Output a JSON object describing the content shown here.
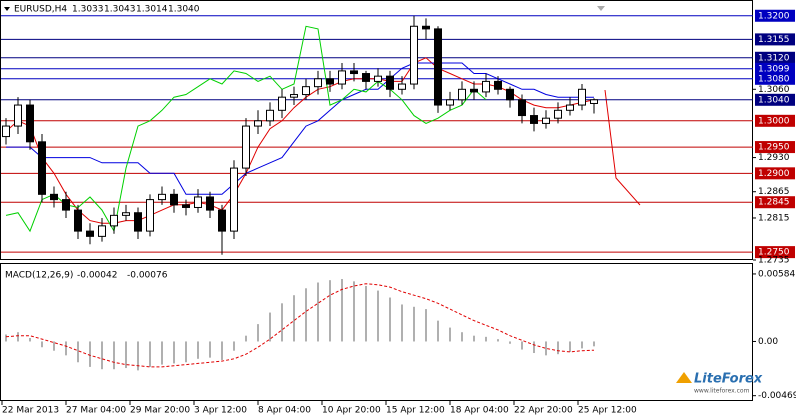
{
  "chart_data": [
    {
      "type": "candlestick",
      "header": {
        "symbol": "EURUSD,H4",
        "values": [
          1.3033,
          1.3043,
          1.3014,
          1.304
        ],
        "value_labels": [
          "1.3033",
          "1.3043",
          "1.3014",
          "1.3040"
        ]
      },
      "open": [
        1.297,
        1.299,
        1.303,
        1.296,
        1.286,
        1.285,
        1.283,
        1.279,
        1.278,
        1.28,
        1.282,
        1.2825,
        1.279,
        1.285,
        1.286,
        1.284,
        1.2835,
        1.2855,
        1.283,
        1.279,
        1.291,
        1.299,
        1.3,
        1.302,
        1.3045,
        1.305,
        1.3065,
        1.308,
        1.307,
        1.3095,
        1.309,
        1.3075,
        1.3085,
        1.306,
        1.307,
        1.318,
        1.3175,
        1.303,
        1.304,
        1.306,
        1.3055,
        1.3075,
        1.306,
        1.304,
        1.301,
        1.2995,
        1.3005,
        1.302,
        1.303,
        1.3033
      ],
      "high": [
        1.3005,
        1.3045,
        1.304,
        1.2975,
        1.2875,
        1.2865,
        1.284,
        1.2805,
        1.2815,
        1.2835,
        1.284,
        1.2835,
        1.286,
        1.2875,
        1.287,
        1.285,
        1.287,
        1.2865,
        1.284,
        1.2925,
        1.3005,
        1.302,
        1.3035,
        1.306,
        1.3065,
        1.308,
        1.3095,
        1.3095,
        1.311,
        1.311,
        1.3095,
        1.31,
        1.3095,
        1.3085,
        1.32,
        1.3195,
        1.318,
        1.3055,
        1.3075,
        1.3075,
        1.309,
        1.3085,
        1.3065,
        1.305,
        1.3025,
        1.302,
        1.3035,
        1.3045,
        1.307,
        1.3043
      ],
      "low": [
        1.2955,
        1.2975,
        1.2945,
        1.2845,
        1.2835,
        1.2815,
        1.2775,
        1.2765,
        1.277,
        1.2785,
        1.281,
        1.2775,
        1.278,
        1.284,
        1.2825,
        1.282,
        1.2825,
        1.2815,
        1.2745,
        1.2775,
        1.2895,
        1.2975,
        1.299,
        1.3005,
        1.303,
        1.304,
        1.305,
        1.3055,
        1.306,
        1.3075,
        1.306,
        1.3065,
        1.3045,
        1.305,
        1.306,
        1.3155,
        1.3015,
        1.302,
        1.303,
        1.304,
        1.3045,
        1.305,
        1.3025,
        1.2995,
        1.298,
        1.2985,
        1.2995,
        1.301,
        1.302,
        1.3014
      ],
      "close": [
        1.299,
        1.303,
        1.296,
        1.286,
        1.285,
        1.283,
        1.279,
        1.278,
        1.28,
        1.282,
        1.2825,
        1.279,
        1.285,
        1.286,
        1.284,
        1.2835,
        1.2855,
        1.283,
        1.279,
        1.291,
        1.299,
        1.3,
        1.302,
        1.3045,
        1.305,
        1.3065,
        1.308,
        1.307,
        1.3095,
        1.309,
        1.3075,
        1.3085,
        1.306,
        1.307,
        1.318,
        1.3175,
        1.303,
        1.304,
        1.306,
        1.3055,
        1.3075,
        1.306,
        1.304,
        1.301,
        1.2995,
        1.3005,
        1.302,
        1.303,
        1.306,
        1.304
      ],
      "series": [
        {
          "color": "#e00000",
          "values": [
            1.298,
            1.3,
            1.299,
            1.293,
            1.29,
            1.286,
            1.283,
            1.281,
            1.2805,
            1.2805,
            1.281,
            1.281,
            1.282,
            1.283,
            1.284,
            1.284,
            1.2845,
            1.284,
            1.283,
            1.286,
            1.29,
            1.295,
            1.2985,
            1.3,
            1.3025,
            1.3045,
            1.306,
            1.3065,
            1.3075,
            1.308,
            1.308,
            1.308,
            1.3075,
            1.3075,
            1.311,
            1.312,
            1.31,
            1.309,
            1.308,
            1.307,
            1.307,
            1.3065,
            1.3055,
            1.304,
            1.303,
            1.3025,
            1.3025,
            1.303,
            1.3035,
            1.304
          ]
        },
        {
          "color": "#0000e0",
          "values": [
            1.295,
            1.295,
            1.295,
            1.293,
            1.293,
            1.293,
            1.293,
            1.293,
            1.292,
            1.292,
            1.292,
            1.292,
            1.29,
            1.29,
            1.29,
            1.286,
            1.286,
            1.286,
            1.286,
            1.288,
            1.29,
            1.291,
            1.292,
            1.293,
            1.296,
            1.299,
            1.3,
            1.302,
            1.304,
            1.305,
            1.306,
            1.306,
            1.308,
            1.31,
            1.311,
            1.311,
            1.311,
            1.311,
            1.311,
            1.309,
            1.309,
            1.308,
            1.307,
            1.306,
            1.306,
            1.305,
            1.3045,
            1.3045,
            1.3045,
            1.3045
          ]
        },
        {
          "color": "#00d000",
          "values": [
            1.282,
            1.2825,
            1.279,
            1.285,
            1.286,
            1.284,
            1.2835,
            1.2855,
            1.283,
            1.279,
            1.291,
            1.299,
            1.3,
            1.302,
            1.3045,
            1.305,
            1.3065,
            1.308,
            1.307,
            1.3095,
            1.309,
            1.3075,
            1.3085,
            1.306,
            1.307,
            1.318,
            1.3175,
            1.303,
            1.304,
            1.306,
            1.3055,
            1.3075,
            1.306,
            1.304,
            1.301,
            1.2995,
            1.3005,
            1.302,
            1.303,
            1.306,
            1.304,
            null,
            null,
            null,
            null,
            null,
            null,
            null,
            null,
            null
          ]
        }
      ],
      "levels": [
        {
          "value": 1.32,
          "label": "1.3200",
          "color": "#0000c0"
        },
        {
          "value": 1.3155,
          "label": "1.3155",
          "color": "#000080"
        },
        {
          "value": 1.312,
          "label": "1.3120",
          "color": "#000080"
        },
        {
          "value": 1.3099,
          "label": "1.3099",
          "color": "#0000c0"
        },
        {
          "value": 1.308,
          "label": "1.3080",
          "color": "#0000c0"
        },
        {
          "value": 1.304,
          "label": "1.3040",
          "color": "#000080"
        },
        {
          "value": 1.3,
          "label": "1.3000",
          "color": "#c00000"
        },
        {
          "value": 1.295,
          "label": "1.2950",
          "color": "#c00000"
        },
        {
          "value": 1.29,
          "label": "1.2900",
          "color": "#c00000"
        },
        {
          "value": 1.2845,
          "label": "1.2845",
          "color": "#c00000"
        },
        {
          "value": 1.275,
          "label": "1.2750",
          "color": "#c00000"
        }
      ],
      "ylim": [
        1.2735,
        1.323
      ],
      "yticks": [
        {
          "value": 1.306,
          "label": "1.3060"
        },
        {
          "value": 1.293,
          "label": "1.2930"
        },
        {
          "value": 1.2865,
          "label": "1.2865"
        },
        {
          "value": 1.2815,
          "label": "1.2815"
        },
        {
          "value": 1.2735,
          "label": "1.2735"
        }
      ],
      "x_labels": [
        "22 Mar 2013",
        "27 Mar 04:00",
        "29 Mar 20:00",
        "3 Apr 12:00",
        "8 Apr 04:00",
        "10 Apr 20:00",
        "15 Apr 12:00",
        "18 Apr 04:00",
        "22 Apr 20:00",
        "25 Apr 12:00"
      ],
      "logo": {
        "name": "LiteForex",
        "url": "www.liteforex.com"
      }
    },
    {
      "type": "macd",
      "title": "MACD(12,26,9)",
      "header_values": [
        -0.00042,
        -0.00076
      ],
      "values": [
        0.0006,
        0.0008,
        0.0003,
        -0.0005,
        -0.0008,
        -0.0012,
        -0.0018,
        -0.0022,
        -0.0024,
        -0.0024,
        -0.0023,
        -0.0025,
        -0.0022,
        -0.002,
        -0.0019,
        -0.0018,
        -0.0015,
        -0.0014,
        -0.0016,
        -0.0008,
        0.0005,
        0.0015,
        0.0025,
        0.0033,
        0.004,
        0.0046,
        0.0051,
        0.0053,
        0.0054,
        0.0052,
        0.0048,
        0.0044,
        0.0038,
        0.0032,
        0.003,
        0.0028,
        0.0018,
        0.0012,
        0.0008,
        0.0005,
        0.0004,
        0.0002,
        -0.0002,
        -0.0007,
        -0.001,
        -0.0012,
        -0.0011,
        -0.0009,
        -0.0006,
        -0.00042
      ],
      "color": "#b0b0b0",
      "signal": {
        "color": "#e00000",
        "values": [
          0.0004,
          0.0005,
          0.0005,
          0.0002,
          -0.0001,
          -0.0004,
          -0.0008,
          -0.0012,
          -0.0015,
          -0.0018,
          -0.002,
          -0.0021,
          -0.0022,
          -0.0022,
          -0.0021,
          -0.002,
          -0.0019,
          -0.0018,
          -0.0017,
          -0.0015,
          -0.0011,
          -0.0005,
          0.0002,
          0.001,
          0.0018,
          0.0026,
          0.0033,
          0.004,
          0.0045,
          0.0048,
          0.005,
          0.0049,
          0.0047,
          0.0043,
          0.004,
          0.0037,
          0.0033,
          0.0028,
          0.0023,
          0.0018,
          0.0014,
          0.001,
          0.0005,
          0.0001,
          -0.0003,
          -0.0006,
          -0.0008,
          -0.0009,
          -0.0008,
          -0.00076
        ]
      },
      "ylim": [
        -0.00515,
        0.0067
      ],
      "yticks": [
        0.00584,
        {
          "value": 0,
          "label": "0.00"
        },
        -0.00469
      ]
    }
  ]
}
